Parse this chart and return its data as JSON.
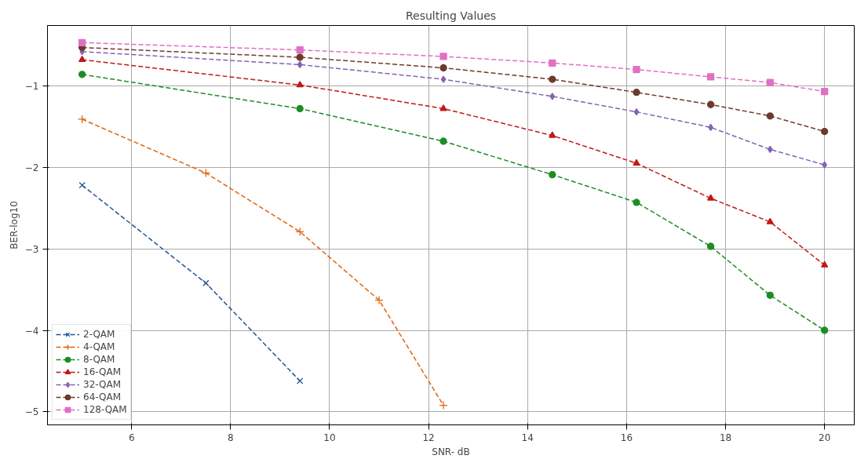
{
  "chart_data": {
    "type": "line",
    "title": "Resulting Values",
    "xlabel": "SNR- dB",
    "ylabel": "BER-log10",
    "xlim": [
      4.3,
      20.6
    ],
    "ylim": [
      -5.16,
      -0.26
    ],
    "xticks": [
      6,
      8,
      10,
      12,
      14,
      16,
      18,
      20
    ],
    "yticks": [
      -1,
      -2,
      -3,
      -4,
      -5
    ],
    "grid": true,
    "legend": "bottom left",
    "line_style": "dashed",
    "series": [
      {
        "name": "2-QAM",
        "color": "#1f5591",
        "marker": "x",
        "x": [
          5,
          7.5,
          9.4
        ],
        "values": [
          -2.22,
          -3.42,
          -4.62
        ]
      },
      {
        "name": "4-QAM",
        "color": "#e0650f",
        "marker": "cross",
        "x": [
          5,
          7.5,
          9.4,
          11,
          12.3
        ],
        "values": [
          -1.41,
          -2.07,
          -2.79,
          -3.63,
          -4.92
        ]
      },
      {
        "name": "8-QAM",
        "color": "#1e8c24",
        "marker": "circle",
        "x": [
          5,
          9.4,
          12.3,
          14.5,
          16.2,
          17.7,
          18.9,
          20
        ],
        "values": [
          -0.86,
          -1.28,
          -1.68,
          -2.09,
          -2.43,
          -2.97,
          -3.57,
          -4.0
        ]
      },
      {
        "name": "16-QAM",
        "color": "#c01818",
        "marker": "triangle",
        "x": [
          5,
          9.4,
          12.3,
          14.5,
          16.2,
          17.7,
          18.9,
          20
        ],
        "values": [
          -0.68,
          -0.99,
          -1.28,
          -1.61,
          -1.95,
          -2.38,
          -2.67,
          -3.2
        ]
      },
      {
        "name": "32-QAM",
        "color": "#8462b4",
        "marker": "diamond",
        "x": [
          5,
          9.4,
          12.3,
          14.5,
          16.2,
          17.7,
          18.9,
          20
        ],
        "values": [
          -0.58,
          -0.74,
          -0.92,
          -1.13,
          -1.32,
          -1.51,
          -1.78,
          -1.97
        ]
      },
      {
        "name": "64-QAM",
        "color": "#6e3a2c",
        "marker": "circle",
        "x": [
          5,
          9.4,
          12.3,
          14.5,
          16.2,
          17.7,
          18.9,
          20
        ],
        "values": [
          -0.53,
          -0.65,
          -0.78,
          -0.92,
          -1.08,
          -1.23,
          -1.37,
          -1.56
        ]
      },
      {
        "name": "128-QAM",
        "color": "#e070c4",
        "marker": "square",
        "x": [
          5,
          9.4,
          12.3,
          14.5,
          16.2,
          17.7,
          18.9,
          20
        ],
        "values": [
          -0.47,
          -0.56,
          -0.64,
          -0.72,
          -0.8,
          -0.89,
          -0.96,
          -1.07
        ]
      }
    ]
  }
}
